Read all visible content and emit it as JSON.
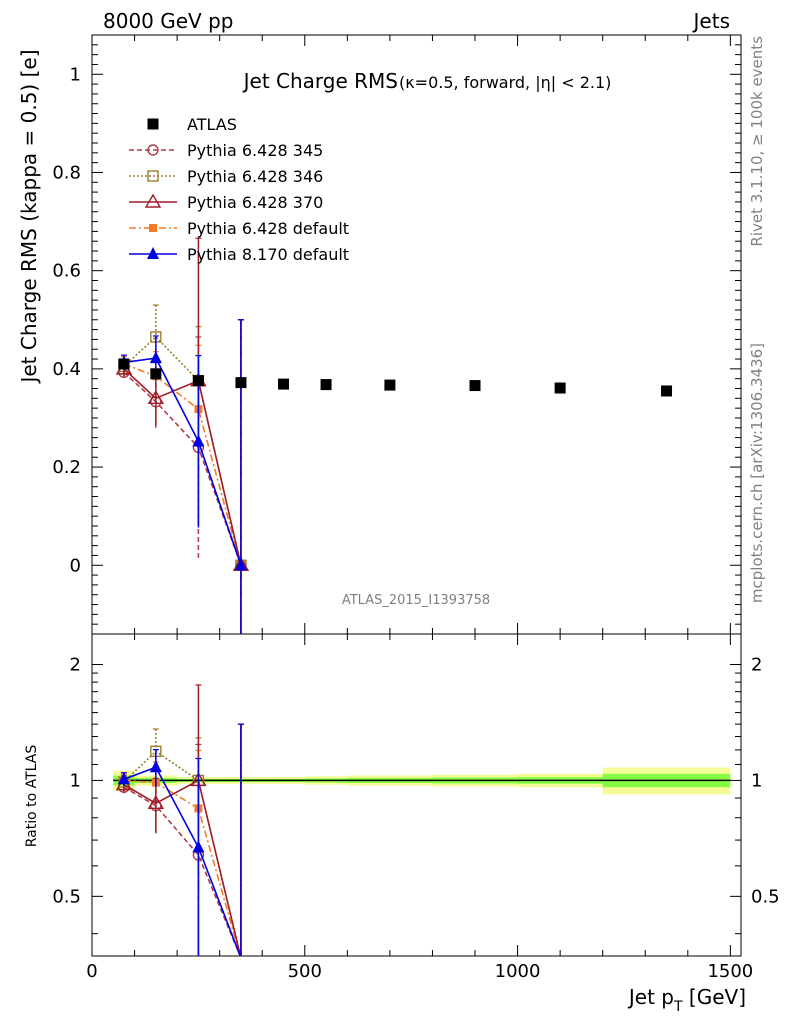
{
  "header": {
    "left": "8000 GeV pp",
    "right": "Jets"
  },
  "side_labels": {
    "rivet": "Rivet 3.1.10, ≥ 100k events",
    "mcplots": "mcplots.cern.ch [arXiv:1306.3436]"
  },
  "analysis_id": "ATLAS_2015_I1393758",
  "chart_data": [
    {
      "type": "line",
      "title": "Jet Charge RMS",
      "title_suffix": "(κ=0.5, forward, |η| < 2.1)",
      "ylabel": "Jet Charge RMS (kappa = 0.5) [e]",
      "xlim": [
        0,
        1525
      ],
      "ylim": [
        -0.14,
        1.08
      ],
      "yticks": [
        0,
        0.2,
        0.4,
        0.6,
        0.8,
        1
      ],
      "ytick_labels": [
        "0",
        "0.2",
        "0.4",
        "0.6",
        "0.8",
        "1"
      ],
      "grid": false,
      "legend_position": "top-left",
      "series": [
        {
          "name": "ATLAS",
          "style": "data",
          "color": "#000000",
          "marker": "square-filled",
          "x": [
            75,
            150,
            250,
            350,
            450,
            550,
            700,
            900,
            1100,
            1350
          ],
          "y": [
            0.41,
            0.39,
            0.376,
            0.372,
            0.369,
            0.368,
            0.367,
            0.366,
            0.361,
            0.355
          ]
        },
        {
          "name": "Pythia 6.428 345",
          "color": "#b03a48",
          "marker": "circle-open",
          "dash": "5,3",
          "x": [
            75,
            150,
            250,
            350
          ],
          "y": [
            0.393,
            0.333,
            0.24,
            0.0
          ],
          "err": [
            0.015,
            0.055,
            0.225,
            0.5
          ]
        },
        {
          "name": "Pythia 6.428 346",
          "color": "#9a7d2e",
          "marker": "square-open",
          "dash": "2,2",
          "x": [
            75,
            150,
            250,
            350
          ],
          "y": [
            0.405,
            0.465,
            0.376,
            0.0
          ],
          "err": [
            0.015,
            0.065,
            0.11,
            0.5
          ]
        },
        {
          "name": "Pythia 6.428 370",
          "color": "#a01c28",
          "marker": "triangle-open",
          "dash": "",
          "x": [
            75,
            150,
            250,
            350
          ],
          "y": [
            0.4,
            0.34,
            0.376,
            0.0
          ],
          "err": [
            0.015,
            0.055,
            0.29,
            0.5
          ]
        },
        {
          "name": "Pythia 6.428 default",
          "color": "#f07c28",
          "marker": "square-filled-small",
          "dash": "7,3,2,3",
          "x": [
            75,
            150,
            250,
            350
          ],
          "y": [
            0.41,
            0.385,
            0.318,
            0.0
          ],
          "err": [
            0.015,
            0.05,
            0.13,
            0.5
          ]
        },
        {
          "name": "Pythia 8.170 default",
          "color": "#0000e0",
          "marker": "triangle-filled",
          "dash": "",
          "x": [
            75,
            150,
            250,
            350
          ],
          "y": [
            0.413,
            0.422,
            0.252,
            0.0
          ],
          "err": [
            0.015,
            0.045,
            0.175,
            0.5
          ]
        }
      ]
    },
    {
      "type": "line",
      "ylabel": "Ratio to ATLAS",
      "xlabel": "Jet p_T [GeV]",
      "xlim": [
        0,
        1525
      ],
      "xticks": [
        0,
        500,
        1000,
        1500
      ],
      "xtick_labels": [
        "0",
        "500",
        "1000",
        "1500"
      ],
      "ylim": [
        0.35,
        2.4
      ],
      "yscale": "log",
      "yticks": [
        0.5,
        1,
        2
      ],
      "ytick_labels": [
        "0.5",
        "1",
        "2"
      ],
      "band_colors": {
        "inner": "#86fd45",
        "outer": "#f5fb96"
      },
      "band_edges": [
        50,
        100,
        200,
        300,
        400,
        500,
        600,
        800,
        1000,
        1200,
        1500
      ],
      "band_inner": [
        0.03,
        0.015,
        0.01,
        0.01,
        0.01,
        0.012,
        0.015,
        0.018,
        0.02,
        0.04
      ],
      "band_outer": [
        0.06,
        0.03,
        0.02,
        0.02,
        0.02,
        0.025,
        0.03,
        0.035,
        0.04,
        0.08
      ],
      "series": [
        {
          "name": "Pythia 6.428 345",
          "x": [
            75,
            150,
            250,
            350
          ],
          "y": [
            0.96,
            0.86,
            0.64,
            0.0
          ],
          "err": [
            0.04,
            0.14,
            0.6,
            1.4
          ]
        },
        {
          "name": "Pythia 6.428 346",
          "x": [
            75,
            150,
            250,
            350
          ],
          "y": [
            0.99,
            1.19,
            1.0,
            0.0
          ],
          "err": [
            0.04,
            0.17,
            0.29,
            1.4
          ]
        },
        {
          "name": "Pythia 6.428 370",
          "x": [
            75,
            150,
            250,
            350
          ],
          "y": [
            0.975,
            0.872,
            1.0,
            0.0
          ],
          "err": [
            0.04,
            0.14,
            0.77,
            1.4
          ]
        },
        {
          "name": "Pythia 6.428 default",
          "x": [
            75,
            150,
            250,
            350
          ],
          "y": [
            1.0,
            0.987,
            0.846,
            0.0
          ],
          "err": [
            0.04,
            0.13,
            0.35,
            1.4
          ]
        },
        {
          "name": "Pythia 8.170 default",
          "x": [
            75,
            150,
            250,
            350
          ],
          "y": [
            1.007,
            1.082,
            0.67,
            0.0
          ],
          "err": [
            0.04,
            0.12,
            0.47,
            1.4
          ]
        }
      ]
    }
  ]
}
